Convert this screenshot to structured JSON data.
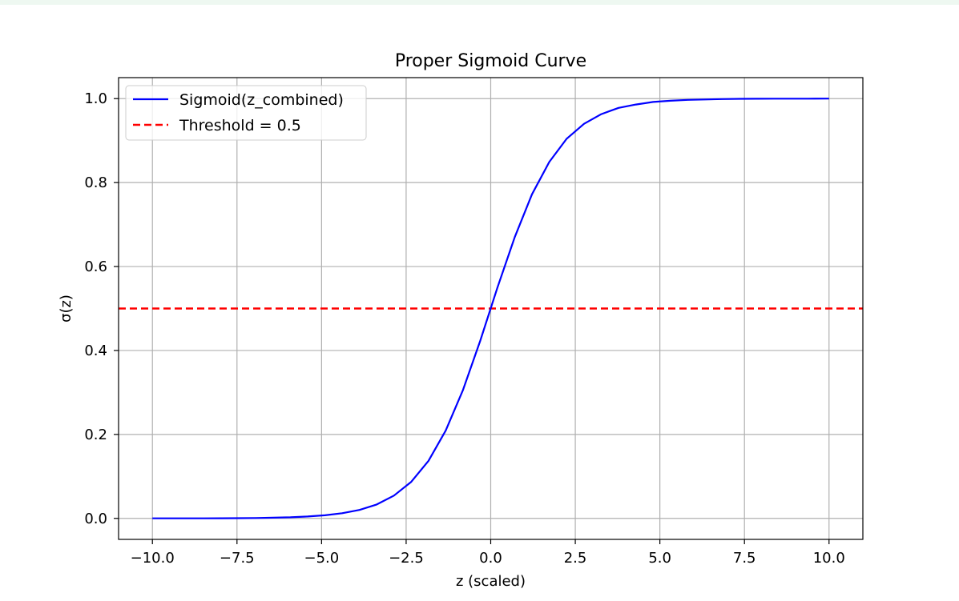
{
  "chart_data": {
    "type": "line",
    "title": "Proper Sigmoid Curve",
    "xlabel": "z (scaled)",
    "ylabel": "σ(z)",
    "xlim": [
      -11,
      11
    ],
    "ylim": [
      -0.05,
      1.05
    ],
    "grid": true,
    "legend_position": "upper-left",
    "x_ticks": [
      -10,
      -7.5,
      -5,
      -2.5,
      0,
      2.5,
      5,
      7.5,
      10
    ],
    "x_tick_labels": [
      "−10.0",
      "−7.5",
      "−5.0",
      "−2.5",
      "0.0",
      "2.5",
      "5.0",
      "7.5",
      "10.0"
    ],
    "y_ticks": [
      0,
      0.2,
      0.4,
      0.6,
      0.8,
      1.0
    ],
    "y_tick_labels": [
      "0.0",
      "0.2",
      "0.4",
      "0.6",
      "0.8",
      "1.0"
    ],
    "series": [
      {
        "name": "Sigmoid(z_combined)",
        "color": "#0000ff",
        "style": "solid",
        "x": [
          -10,
          -9.49,
          -8.98,
          -8.47,
          -7.96,
          -7.45,
          -6.94,
          -6.43,
          -5.92,
          -5.41,
          -4.9,
          -4.39,
          -3.88,
          -3.37,
          -2.86,
          -2.35,
          -1.84,
          -1.33,
          -0.82,
          -0.31,
          0.2,
          0.71,
          1.22,
          1.73,
          2.24,
          2.76,
          3.27,
          3.78,
          4.29,
          4.8,
          5.31,
          5.82,
          6.33,
          6.84,
          7.35,
          7.86,
          8.37,
          8.88,
          9.39,
          10
        ],
        "y": [
          4.54e-05,
          7.57e-05,
          0.000126,
          0.00021,
          0.000349,
          0.00058,
          0.000966,
          0.0016,
          0.00268,
          0.00445,
          0.00739,
          0.0123,
          0.0202,
          0.0332,
          0.0542,
          0.0871,
          0.137,
          0.209,
          0.306,
          0.423,
          0.55,
          0.67,
          0.772,
          0.849,
          0.904,
          0.94,
          0.963,
          0.978,
          0.986,
          0.992,
          0.995,
          0.997,
          0.998,
          0.999,
          0.9994,
          0.9996,
          0.9998,
          0.9999,
          0.9999,
          1.0
        ]
      },
      {
        "name": "Threshold = 0.5",
        "color": "#ff0000",
        "style": "dashed",
        "y_constant": 0.5
      }
    ]
  }
}
